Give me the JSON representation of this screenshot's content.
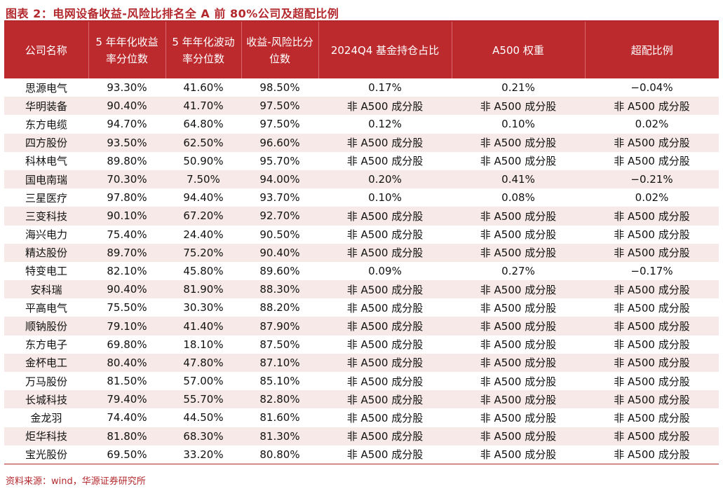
{
  "title": "图表 2：电网设备收益-风险比排名全 A 前 80%公司及超配比例",
  "table": {
    "headers": [
      "公司名称",
      "5 年年化收益率分位数",
      "5 年年化波动率分位数",
      "收益-风险比分位数",
      "2024Q4 基金持仓占比",
      "A500 权重",
      "超配比例"
    ],
    "rows": [
      [
        "思源电气",
        "93.30%",
        "41.60%",
        "98.50%",
        "0.17%",
        "0.21%",
        "−0.04%"
      ],
      [
        "华明装备",
        "90.40%",
        "41.70%",
        "97.50%",
        "非 A500 成分股",
        "非 A500 成分股",
        "非 A500 成分股"
      ],
      [
        "东方电缆",
        "94.70%",
        "64.80%",
        "97.50%",
        "0.12%",
        "0.10%",
        "0.02%"
      ],
      [
        "四方股份",
        "93.50%",
        "62.50%",
        "96.60%",
        "非 A500 成分股",
        "非 A500 成分股",
        "非 A500 成分股"
      ],
      [
        "科林电气",
        "89.80%",
        "50.90%",
        "95.70%",
        "非 A500 成分股",
        "非 A500 成分股",
        "非 A500 成分股"
      ],
      [
        "国电南瑞",
        "70.30%",
        "7.50%",
        "94.00%",
        "0.20%",
        "0.41%",
        "−0.21%"
      ],
      [
        "三星医疗",
        "97.80%",
        "94.40%",
        "93.70%",
        "0.10%",
        "0.08%",
        "0.02%"
      ],
      [
        "三变科技",
        "90.10%",
        "67.20%",
        "92.70%",
        "非 A500 成分股",
        "非 A500 成分股",
        "非 A500 成分股"
      ],
      [
        "海兴电力",
        "75.40%",
        "24.40%",
        "90.50%",
        "非 A500 成分股",
        "非 A500 成分股",
        "非 A500 成分股"
      ],
      [
        "精达股份",
        "89.70%",
        "75.20%",
        "90.40%",
        "非 A500 成分股",
        "非 A500 成分股",
        "非 A500 成分股"
      ],
      [
        "特变电工",
        "82.10%",
        "45.80%",
        "89.60%",
        "0.09%",
        "0.27%",
        "−0.17%"
      ],
      [
        "安科瑞",
        "90.40%",
        "81.90%",
        "88.30%",
        "非 A500 成分股",
        "非 A500 成分股",
        "非 A500 成分股"
      ],
      [
        "平高电气",
        "75.50%",
        "30.30%",
        "88.20%",
        "非 A500 成分股",
        "非 A500 成分股",
        "非 A500 成分股"
      ],
      [
        "顺钠股份",
        "79.10%",
        "41.40%",
        "87.90%",
        "非 A500 成分股",
        "非 A500 成分股",
        "非 A500 成分股"
      ],
      [
        "东方电子",
        "69.80%",
        "18.10%",
        "87.50%",
        "非 A500 成分股",
        "非 A500 成分股",
        "非 A500 成分股"
      ],
      [
        "金杯电工",
        "80.40%",
        "47.80%",
        "87.10%",
        "非 A500 成分股",
        "非 A500 成分股",
        "非 A500 成分股"
      ],
      [
        "万马股份",
        "81.50%",
        "57.00%",
        "85.10%",
        "非 A500 成分股",
        "非 A500 成分股",
        "非 A500 成分股"
      ],
      [
        "长城科技",
        "79.40%",
        "55.70%",
        "82.80%",
        "非 A500 成分股",
        "非 A500 成分股",
        "非 A500 成分股"
      ],
      [
        "金龙羽",
        "74.40%",
        "44.50%",
        "81.60%",
        "非 A500 成分股",
        "非 A500 成分股",
        "非 A500 成分股"
      ],
      [
        "炬华科技",
        "81.80%",
        "68.30%",
        "81.30%",
        "非 A500 成分股",
        "非 A500 成分股",
        "非 A500 成分股"
      ],
      [
        "宝光股份",
        "69.50%",
        "33.20%",
        "80.80%",
        "非 A500 成分股",
        "非 A500 成分股",
        "非 A500 成分股"
      ]
    ]
  },
  "source": "资料来源：wind，华源证券研究所",
  "colors": {
    "accent": "#b3282d",
    "header_bg": "#bd2a2e",
    "stripe_bg": "#f6e9e7"
  }
}
